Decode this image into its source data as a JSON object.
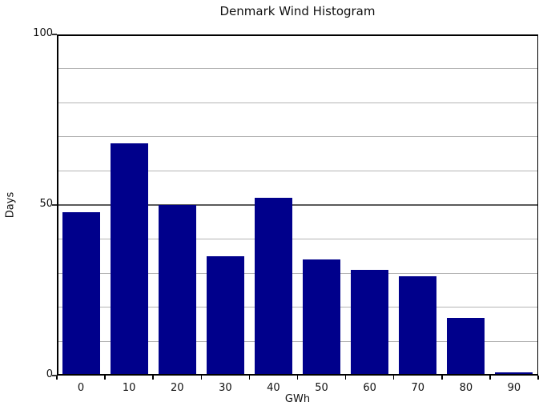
{
  "chart_data": {
    "type": "bar",
    "title": "Denmark Wind Histogram",
    "xlabel": "GWh",
    "ylabel": "Days",
    "categories": [
      "0",
      "10",
      "20",
      "30",
      "40",
      "50",
      "60",
      "70",
      "80",
      "90"
    ],
    "values": [
      48,
      68,
      50,
      35,
      52,
      34,
      31,
      29,
      17,
      1
    ],
    "ylim": [
      0,
      100
    ],
    "ytick_labels": [
      "0",
      "50",
      "100"
    ],
    "yticks_labeled_values": [
      0,
      50,
      100
    ],
    "grid": "horizontal",
    "grid_interval": 10,
    "major_grid_value": 50,
    "legend_position": "none",
    "colors": {
      "bar_fill": "#00008B",
      "grid_minor": "#b4b4b4",
      "grid_major": "#5a5a5a",
      "axis": "#000000",
      "text": "#111111",
      "background": "#ffffff"
    }
  }
}
